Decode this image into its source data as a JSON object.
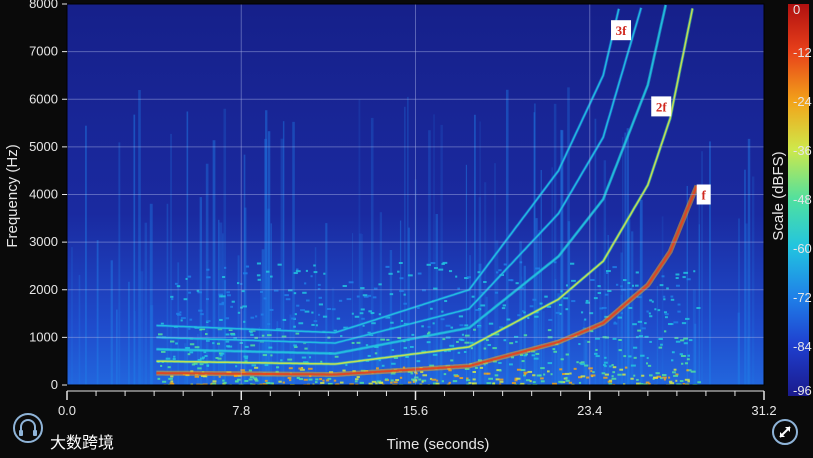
{
  "chart_data": {
    "type": "heatmap",
    "title": "",
    "xlabel": "Time (seconds)",
    "ylabel": "Frequency (Hz)",
    "colorbar_label": "Scale (dBFS)",
    "xlim": [
      0,
      31.2
    ],
    "ylim": [
      0,
      8000
    ],
    "x_ticks": [
      "0.0",
      "7.8",
      "15.6",
      "23.4",
      "31.2"
    ],
    "y_ticks": [
      "0",
      "1000",
      "2000",
      "3000",
      "4000",
      "5000",
      "6000",
      "7000",
      "8000"
    ],
    "colorbar_ticks": [
      "0",
      "-12",
      "-24",
      "-36",
      "-48",
      "-60",
      "-72",
      "-84",
      "-96"
    ],
    "colorbar_range": [
      -96,
      0
    ],
    "colormap": [
      "#1a1a8c",
      "#1f3fcf",
      "#1f7fe8",
      "#22c4e0",
      "#4fe0a0",
      "#cfe84a",
      "#f2a41a",
      "#e8401a",
      "#b01010"
    ],
    "grid": true,
    "harmonic_labels": [
      {
        "label": "f",
        "time": 28.5,
        "freq": 4000
      },
      {
        "label": "2f",
        "time": 26.6,
        "freq": 5850
      },
      {
        "label": "3f",
        "time": 24.8,
        "freq": 7450
      }
    ],
    "sweep_fundamental": [
      {
        "time": 4.0,
        "freq": 250
      },
      {
        "time": 12.0,
        "freq": 220
      },
      {
        "time": 18.0,
        "freq": 400
      },
      {
        "time": 22.0,
        "freq": 900
      },
      {
        "time": 24.0,
        "freq": 1300
      },
      {
        "time": 26.0,
        "freq": 2100
      },
      {
        "time": 27.0,
        "freq": 2800
      },
      {
        "time": 28.3,
        "freq": 4300
      }
    ]
  },
  "watermark": {
    "text": "大数跨境"
  },
  "icons": {
    "brand": "headphone-logo-icon",
    "zoom": "diagonal-arrows-icon"
  }
}
